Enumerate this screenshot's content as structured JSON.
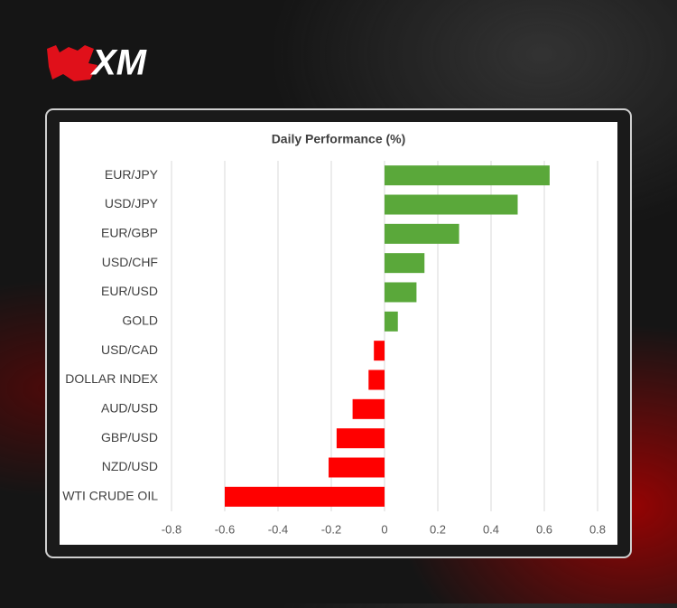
{
  "brand": "XM",
  "chart_data": {
    "type": "bar",
    "orientation": "horizontal",
    "title": "Daily Performance (%)",
    "categories": [
      "EUR/JPY",
      "USD/JPY",
      "EUR/GBP",
      "USD/CHF",
      "EUR/USD",
      "GOLD",
      "USD/CAD",
      "DOLLAR INDEX",
      "AUD/USD",
      "GBP/USD",
      "NZD/USD",
      "WTI CRUDE OIL"
    ],
    "values": [
      0.62,
      0.5,
      0.28,
      0.15,
      0.12,
      0.05,
      -0.04,
      -0.06,
      -0.12,
      -0.18,
      -0.21,
      -0.6
    ],
    "positive_color": "#5aa83a",
    "negative_color": "#ff0000",
    "xlim": [
      -0.8,
      0.8
    ],
    "xticks": [
      -0.8,
      -0.6,
      -0.4,
      -0.2,
      0,
      0.2,
      0.4,
      0.6,
      0.8
    ],
    "grid": true
  }
}
